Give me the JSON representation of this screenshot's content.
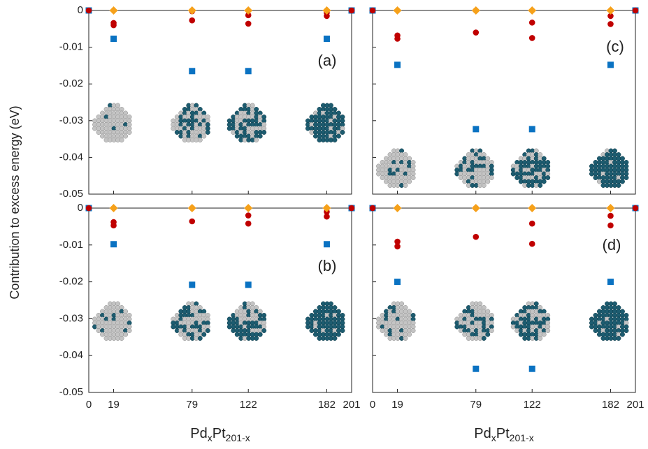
{
  "chart_data": [
    {
      "type": "scatter",
      "label": "(a)",
      "ylabel": "Contribution to excess energy (eV)",
      "xlim": [
        0,
        201
      ],
      "xticks": [
        0,
        19,
        79,
        122,
        182,
        201
      ],
      "ylim": [
        -0.05,
        0
      ],
      "yticks": [
        0,
        -0.01,
        -0.02,
        -0.03,
        -0.04,
        -0.05
      ],
      "show_xticklabels": false,
      "show_yticklabels": true,
      "series": [
        {
          "marker": "square",
          "color": "#0a72c2",
          "x": [
            0,
            19,
            79,
            122,
            182,
            201
          ],
          "values": [
            0,
            -0.0077,
            -0.0165,
            -0.0165,
            -0.0077,
            0
          ]
        },
        {
          "marker": "circle",
          "color": "#c00000",
          "x": [
            0,
            19,
            79,
            122,
            182,
            201
          ],
          "values": [
            0,
            -0.0034,
            -0.0002,
            -0.0013,
            -0.0006,
            0
          ]
        },
        {
          "marker": "circle",
          "color": "#c00000",
          "x": [
            19,
            79,
            122,
            182
          ],
          "values": [
            -0.004,
            -0.0027,
            -0.0036,
            -0.0015
          ]
        },
        {
          "marker": "diamond",
          "color": "#f6a11a",
          "x": [
            19,
            79,
            122,
            182
          ],
          "values": [
            0,
            0,
            0,
            0
          ]
        }
      ]
    },
    {
      "type": "scatter",
      "label": "(b)",
      "xlabel": [
        "Pd",
        "x",
        "Pt",
        "201-x"
      ],
      "xlim": [
        0,
        201
      ],
      "xticks": [
        0,
        19,
        79,
        122,
        182,
        201
      ],
      "ylim": [
        -0.05,
        0
      ],
      "yticks": [
        0,
        -0.01,
        -0.02,
        -0.03,
        -0.04,
        -0.05
      ],
      "show_xticklabels": true,
      "show_yticklabels": true,
      "series": [
        {
          "marker": "square",
          "color": "#0a72c2",
          "x": [
            0,
            19,
            79,
            122,
            182,
            201
          ],
          "values": [
            0,
            -0.0098,
            -0.0208,
            -0.0208,
            -0.0098,
            0
          ]
        },
        {
          "marker": "circle",
          "color": "#c00000",
          "x": [
            0,
            19,
            79,
            122,
            182,
            201
          ],
          "values": [
            0,
            -0.0038,
            0,
            -0.002,
            -0.001,
            0
          ]
        },
        {
          "marker": "circle",
          "color": "#c00000",
          "x": [
            19,
            79,
            122,
            182
          ],
          "values": [
            -0.0047,
            -0.0036,
            -0.0042,
            -0.0023
          ]
        },
        {
          "marker": "diamond",
          "color": "#f6a11a",
          "x": [
            19,
            79,
            122,
            182
          ],
          "values": [
            0,
            0,
            0,
            0
          ]
        }
      ]
    },
    {
      "type": "scatter",
      "label": "(c)",
      "xlim": [
        0,
        201
      ],
      "xticks": [
        0,
        19,
        79,
        122,
        182,
        201
      ],
      "ylim": [
        -0.05,
        0
      ],
      "yticks": [
        0,
        -0.01,
        -0.02,
        -0.03,
        -0.04,
        -0.05
      ],
      "show_xticklabels": false,
      "show_yticklabels": false,
      "series": [
        {
          "marker": "square",
          "color": "#0a72c2",
          "x": [
            0,
            19,
            79,
            122,
            182,
            201
          ],
          "values": [
            0,
            -0.0148,
            -0.0323,
            -0.0323,
            -0.0148,
            0
          ]
        },
        {
          "marker": "circle",
          "color": "#c00000",
          "x": [
            0,
            19,
            79,
            122,
            182,
            201
          ],
          "values": [
            0,
            -0.0068,
            0,
            -0.0033,
            -0.0015,
            0
          ]
        },
        {
          "marker": "circle",
          "color": "#c00000",
          "x": [
            19,
            79,
            122,
            182
          ],
          "values": [
            -0.0077,
            -0.006,
            -0.0075,
            -0.0037
          ]
        },
        {
          "marker": "diamond",
          "color": "#f6a11a",
          "x": [
            19,
            79,
            122,
            182
          ],
          "values": [
            0,
            0,
            0,
            0
          ]
        }
      ]
    },
    {
      "type": "scatter",
      "label": "(d)",
      "xlabel": [
        "Pd",
        "x",
        "Pt",
        "201-x"
      ],
      "xlim": [
        0,
        201
      ],
      "xticks": [
        0,
        19,
        79,
        122,
        182,
        201
      ],
      "ylim": [
        -0.05,
        0
      ],
      "yticks": [
        0,
        -0.01,
        -0.02,
        -0.03,
        -0.04,
        -0.05
      ],
      "show_xticklabels": true,
      "show_yticklabels": false,
      "series": [
        {
          "marker": "square",
          "color": "#0a72c2",
          "x": [
            0,
            19,
            79,
            122,
            182,
            201
          ],
          "values": [
            0,
            -0.02,
            -0.0436,
            -0.0436,
            -0.02,
            0
          ]
        },
        {
          "marker": "circle",
          "color": "#c00000",
          "x": [
            0,
            19,
            79,
            122,
            182,
            201
          ],
          "values": [
            0,
            -0.0091,
            0,
            -0.0042,
            -0.0021,
            0
          ]
        },
        {
          "marker": "circle",
          "color": "#c00000",
          "x": [
            19,
            79,
            122,
            182
          ],
          "values": [
            -0.0104,
            -0.0078,
            -0.0097,
            -0.0047
          ]
        },
        {
          "marker": "diamond",
          "color": "#f6a11a",
          "x": [
            19,
            79,
            122,
            182
          ],
          "values": [
            0,
            0,
            0,
            0
          ]
        }
      ]
    }
  ]
}
